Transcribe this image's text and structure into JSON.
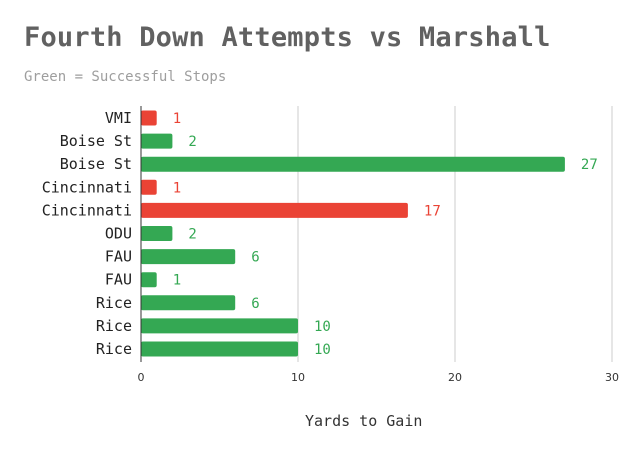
{
  "chart_data": {
    "type": "bar",
    "orientation": "horizontal",
    "title": "Fourth Down Attempts vs Marshall",
    "subtitle": "Green = Successful Stops",
    "xlabel": "Yards to Gain",
    "ylabel": "",
    "xlim": [
      0,
      30
    ],
    "xticks": [
      "0",
      "10",
      "20",
      "30"
    ],
    "grid": true,
    "categories": [
      "VMI",
      "Boise St",
      "Boise St",
      "Cincinnati",
      "Cincinnati",
      "ODU",
      "FAU",
      "FAU",
      "Rice",
      "Rice",
      "Rice"
    ],
    "values": [
      1,
      2,
      27,
      1,
      17,
      2,
      6,
      1,
      6,
      10,
      10
    ],
    "successful_stop": [
      false,
      true,
      true,
      false,
      false,
      true,
      true,
      true,
      true,
      true,
      true
    ]
  },
  "colors": {
    "success": "#34a853",
    "fail": "#ea4335",
    "grid": "#cccccc",
    "axis": "#333333"
  }
}
